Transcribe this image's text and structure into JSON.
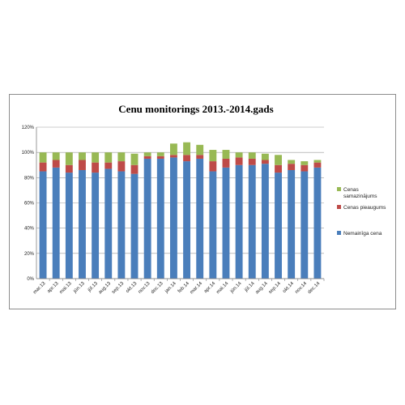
{
  "chart_data": {
    "type": "bar",
    "stacked": true,
    "title": "Cenu monitorings 2013.-2014.gads",
    "xlabel": "",
    "ylabel": "",
    "ylim": [
      0,
      1.2
    ],
    "yticks": [
      "0%",
      "20%",
      "40%",
      "60%",
      "80%",
      "100%",
      "120%"
    ],
    "grid": true,
    "legend_position": "right",
    "categories": [
      "mar.13",
      "apr.13",
      "mai.13",
      "jūn.13",
      "jūl.13",
      "aug.13",
      "sep.13",
      "okt.13",
      "nov.13",
      "dec.13",
      "jan.14",
      "feb.14",
      "mar.14",
      "apr.14",
      "mai.14",
      "jūn.14",
      "jūl.14",
      "aug.14",
      "sep.14",
      "okt.14",
      "nov.14",
      "dec.14"
    ],
    "series": [
      {
        "name": "Nemainīga cena",
        "color": "#4a7ebb",
        "values": [
          0.85,
          0.88,
          0.84,
          0.86,
          0.84,
          0.87,
          0.85,
          0.83,
          0.95,
          0.95,
          0.96,
          0.93,
          0.95,
          0.85,
          0.88,
          0.9,
          0.9,
          0.91,
          0.84,
          0.86,
          0.85,
          0.88
        ]
      },
      {
        "name": "Cenas pieaugums",
        "color": "#be4b48",
        "values": [
          0.07,
          0.06,
          0.06,
          0.08,
          0.08,
          0.05,
          0.08,
          0.07,
          0.02,
          0.02,
          0.02,
          0.05,
          0.03,
          0.08,
          0.07,
          0.06,
          0.05,
          0.03,
          0.06,
          0.05,
          0.05,
          0.04
        ]
      },
      {
        "name": "Cenas samazinājums",
        "color": "#98b954",
        "values": [
          0.08,
          0.06,
          0.1,
          0.06,
          0.08,
          0.08,
          0.07,
          0.09,
          0.03,
          0.03,
          0.09,
          0.1,
          0.08,
          0.09,
          0.07,
          0.04,
          0.05,
          0.05,
          0.08,
          0.03,
          0.03,
          0.02
        ]
      }
    ]
  }
}
